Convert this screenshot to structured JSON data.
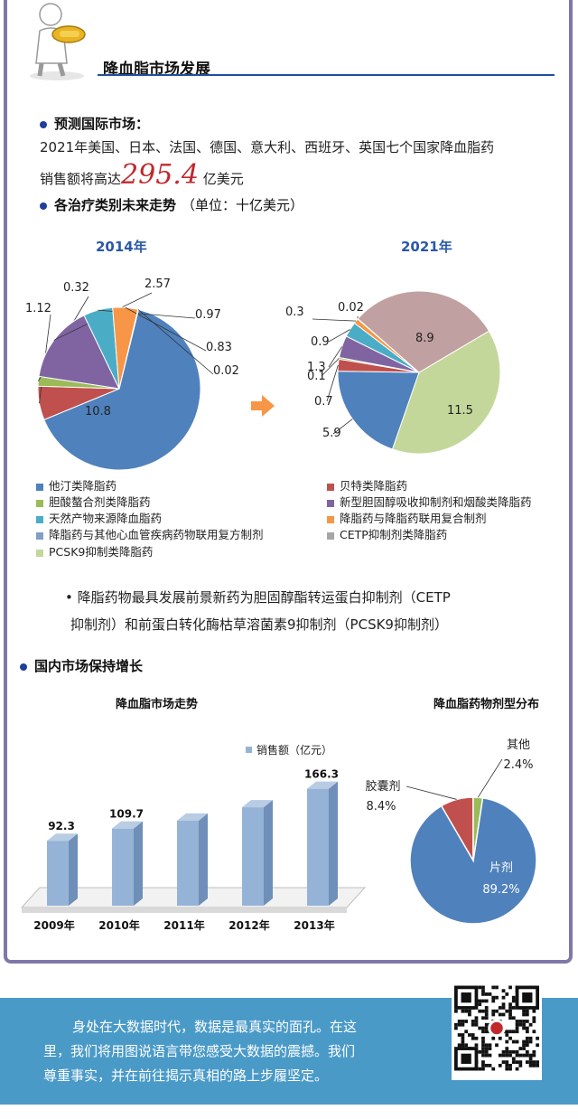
{
  "header": {
    "title": "降血脂市场发展"
  },
  "intl": {
    "heading": "预测国际市场：",
    "line1": "2021年美国、日本、法国、德国、意大利、西班牙、英国七个国家降血脂药",
    "line2_prefix": "销售额将高达",
    "line2_value": "295.4",
    "line2_suffix": "亿美元"
  },
  "trend": {
    "heading": "各治疗类别未来走势",
    "unit": "（单位：十亿美元）"
  },
  "colors": {
    "statin": "#4f81bd",
    "fibrate": "#c0504d",
    "bile": "#9bbb59",
    "novel": "#8064a2",
    "natural": "#4bacc6",
    "combo_lipid": "#f79646",
    "combo_cv": "#7f9fc5",
    "cetp": "#c0a0a0",
    "pcsk9": "#c4d79b",
    "blue_title": "#2a58a8",
    "footer_bg": "#4a9ac8",
    "bar": "#95b3d7"
  },
  "legend": [
    {
      "label": "他汀类降脂药",
      "color": "#4f81bd"
    },
    {
      "label": "贝特类降脂药",
      "color": "#c0504d"
    },
    {
      "label": "胆酸螯合剂类降脂药",
      "color": "#9bbb59"
    },
    {
      "label": "新型胆固醇吸收抑制剂和烟酸类降脂药",
      "color": "#8064a2"
    },
    {
      "label": "天然产物来源降血脂药",
      "color": "#4bacc6"
    },
    {
      "label": "降脂药与降脂药联用复合制剂",
      "color": "#f79646"
    },
    {
      "label": "降脂药与其他心血管疾病药物联用复方制剂",
      "color": "#7f9fc5"
    },
    {
      "label": "CETP抑制剂类降脂药",
      "color": "#a6a6a6"
    },
    {
      "label": "PCSK9抑制类降脂药",
      "color": "#c4d79b"
    }
  ],
  "note": {
    "line1": "• 降脂药物最具发展前景新药为胆固醇酯转运蛋白抑制剂（CETP",
    "line2": "抑制剂）和前蛋白转化酶枯草溶菌素9抑制剂（PCSK9抑制剂）"
  },
  "domestic": {
    "heading": "国内市场保持增长"
  },
  "chart_data": [
    {
      "type": "pie",
      "title": "2014年",
      "labels": [
        "他汀类降脂药",
        "贝特类降脂药",
        "胆酸螯合剂类降脂药",
        "新型胆固醇吸收抑制剂和烟酸类降脂药",
        "天然产物来源降血脂药",
        "降脂药与降脂药联用复合制剂",
        "降脂药与其他心血管疾病药物联用复方制剂"
      ],
      "values": [
        10.8,
        1.12,
        0.32,
        2.57,
        0.97,
        0.83,
        0.02
      ],
      "value_labels": [
        "10.8",
        "1.12",
        "0.32",
        "2.57",
        "0.97",
        "0.83",
        "0.02"
      ]
    },
    {
      "type": "pie",
      "title": "2021年",
      "labels": [
        "PCSK9抑制类降脂药",
        "他汀类降脂药",
        "贝特类降脂药",
        "胆酸螯合剂类降脂药",
        "新型胆固醇吸收抑制剂和烟酸类降脂药",
        "天然产物来源降血脂药",
        "降脂药与降脂药联用复合制剂",
        "降脂药与其他心血管疾病药物联用复方制剂",
        "CETP抑制剂类降脂药"
      ],
      "values": [
        11.5,
        5.9,
        0.7,
        0.1,
        1.3,
        0.9,
        0.3,
        0.02,
        8.9
      ],
      "value_labels": [
        "11.5",
        "5.9",
        "0.7",
        "0.1",
        "1.3",
        "0.9",
        "0.3",
        "0.02",
        "8.9"
      ]
    },
    {
      "type": "bar",
      "title": "降血脂市场走势",
      "legend": "销售额（亿元）",
      "categories": [
        "2009年",
        "2010年",
        "2011年",
        "2012年",
        "2013年"
      ],
      "values": [
        92.3,
        109.7,
        121,
        140,
        166.3
      ],
      "value_labels": [
        "92.3",
        "109.7",
        "",
        "",
        "166.3"
      ]
    },
    {
      "type": "pie",
      "title": "降血脂药物剂型分布",
      "labels": [
        "片剂",
        "胶囊剂",
        "其他"
      ],
      "values": [
        89.2,
        8.4,
        2.4
      ],
      "value_labels": [
        "89.2%",
        "8.4%",
        "2.4%"
      ]
    }
  ],
  "footer": {
    "line1": "身处在大数据时代，数据是最真实的面孔。在这",
    "line2": "里，我们将用图说语言带您感受大数据的震撼。我们",
    "line3": "尊重事实，并在前往揭示真相的路上步履坚定。"
  }
}
